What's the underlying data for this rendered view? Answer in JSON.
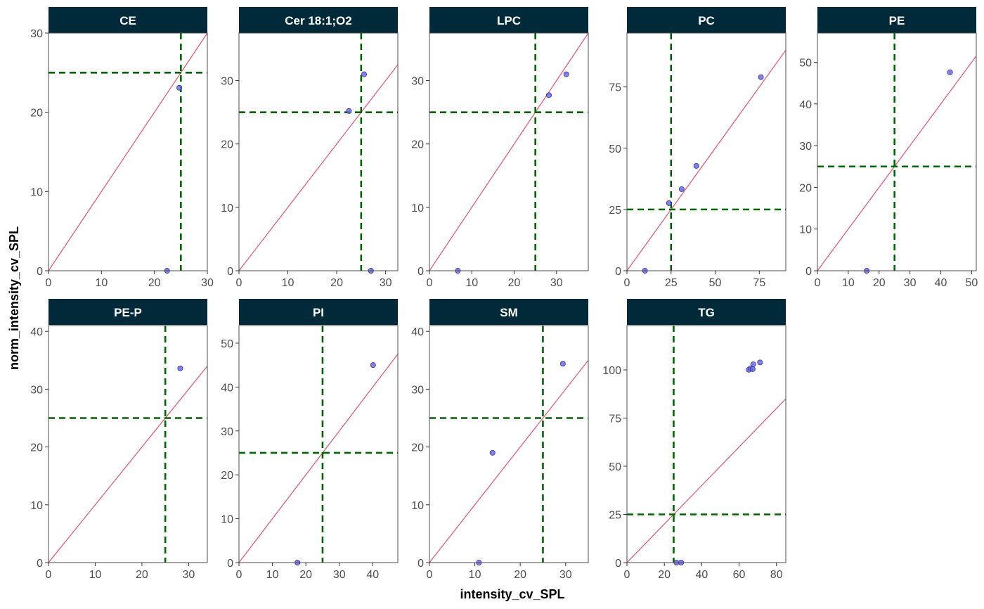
{
  "chart_data": {
    "type": "scatter",
    "xlabel": "intensity_cv_SPL",
    "ylabel": "norm_intensity_cv_SPL",
    "reference_lines": {
      "diagonal": "y = x",
      "vertical_x": 25,
      "horizontal_y": 25
    },
    "colors": {
      "strip_fill": "#002a3a",
      "strip_text": "#ffffff",
      "point_fill": "#6a6ae0",
      "point_stroke": "#3434a8",
      "diagonal_line": "#e8506e",
      "threshold_line": "#006400",
      "panel_border": "#4d4d4d"
    },
    "panels": [
      {
        "title": "CE",
        "xlim": [
          0,
          30
        ],
        "ylim": [
          0,
          30
        ],
        "xticks": [
          0,
          10,
          20,
          30
        ],
        "yticks": [
          0,
          10,
          20,
          30
        ],
        "points": [
          {
            "x": 22.4,
            "y": 0
          },
          {
            "x": 24.7,
            "y": 23.1
          }
        ]
      },
      {
        "title": "Cer 18:1;O2",
        "xlim": [
          0,
          32.5
        ],
        "ylim": [
          0,
          37.5
        ],
        "xticks": [
          0,
          10,
          20,
          30
        ],
        "yticks": [
          0,
          10,
          20,
          30
        ],
        "points": [
          {
            "x": 22.5,
            "y": 25.2
          },
          {
            "x": 25.6,
            "y": 31.0
          },
          {
            "x": 27.0,
            "y": 0
          }
        ]
      },
      {
        "title": "LPC",
        "xlim": [
          0,
          37.5
        ],
        "ylim": [
          0,
          37.5
        ],
        "xticks": [
          0,
          10,
          20,
          30
        ],
        "yticks": [
          0,
          10,
          20,
          30
        ],
        "points": [
          {
            "x": 6.7,
            "y": 0
          },
          {
            "x": 28.2,
            "y": 27.7
          },
          {
            "x": 32.3,
            "y": 31.0
          }
        ]
      },
      {
        "title": "PC",
        "xlim": [
          0,
          90
        ],
        "ylim": [
          0,
          97
        ],
        "xticks": [
          0,
          25,
          50,
          75
        ],
        "yticks": [
          0,
          25,
          50,
          75
        ],
        "points": [
          {
            "x": 10.2,
            "y": 0
          },
          {
            "x": 23.8,
            "y": 27.6
          },
          {
            "x": 31.0,
            "y": 33.3
          },
          {
            "x": 39.3,
            "y": 42.8
          },
          {
            "x": 75.9,
            "y": 79.0
          }
        ]
      },
      {
        "title": "PE",
        "xlim": [
          0,
          51.5
        ],
        "ylim": [
          0,
          57
        ],
        "xticks": [
          0,
          10,
          20,
          30,
          40,
          50
        ],
        "yticks": [
          0,
          10,
          20,
          30,
          40,
          50
        ],
        "points": [
          {
            "x": 16.0,
            "y": 0
          },
          {
            "x": 43.0,
            "y": 47.6
          }
        ]
      },
      {
        "title": "PE-P",
        "xlim": [
          0,
          34
        ],
        "ylim": [
          0,
          41
        ],
        "xticks": [
          0,
          10,
          20,
          30
        ],
        "yticks": [
          0,
          10,
          20,
          30,
          40
        ],
        "points": [
          {
            "x": 28.2,
            "y": 33.6
          }
        ]
      },
      {
        "title": "PI",
        "xlim": [
          0,
          47.5
        ],
        "ylim": [
          0,
          54
        ],
        "xticks": [
          0,
          10,
          20,
          30,
          40
        ],
        "yticks": [
          0,
          10,
          20,
          30,
          40,
          50
        ],
        "points": [
          {
            "x": 17.5,
            "y": 0
          },
          {
            "x": 40.1,
            "y": 45.0
          }
        ]
      },
      {
        "title": "SM",
        "xlim": [
          0,
          35
        ],
        "ylim": [
          0,
          41
        ],
        "xticks": [
          0,
          10,
          20,
          30
        ],
        "yticks": [
          0,
          10,
          20,
          30,
          40
        ],
        "points": [
          {
            "x": 10.9,
            "y": 0
          },
          {
            "x": 13.9,
            "y": 19.0
          },
          {
            "x": 29.4,
            "y": 34.4
          }
        ]
      },
      {
        "title": "TG",
        "xlim": [
          0,
          85
        ],
        "ylim": [
          0,
          123
        ],
        "xticks": [
          0,
          20,
          40,
          60,
          80
        ],
        "yticks": [
          0,
          25,
          50,
          75,
          100
        ],
        "points": [
          {
            "x": 26.5,
            "y": 0
          },
          {
            "x": 29.0,
            "y": 0
          },
          {
            "x": 65.2,
            "y": 100.1
          },
          {
            "x": 66.1,
            "y": 100.8
          },
          {
            "x": 67.3,
            "y": 100.4
          },
          {
            "x": 67.6,
            "y": 102.9
          },
          {
            "x": 71.2,
            "y": 103.9
          }
        ]
      }
    ]
  }
}
